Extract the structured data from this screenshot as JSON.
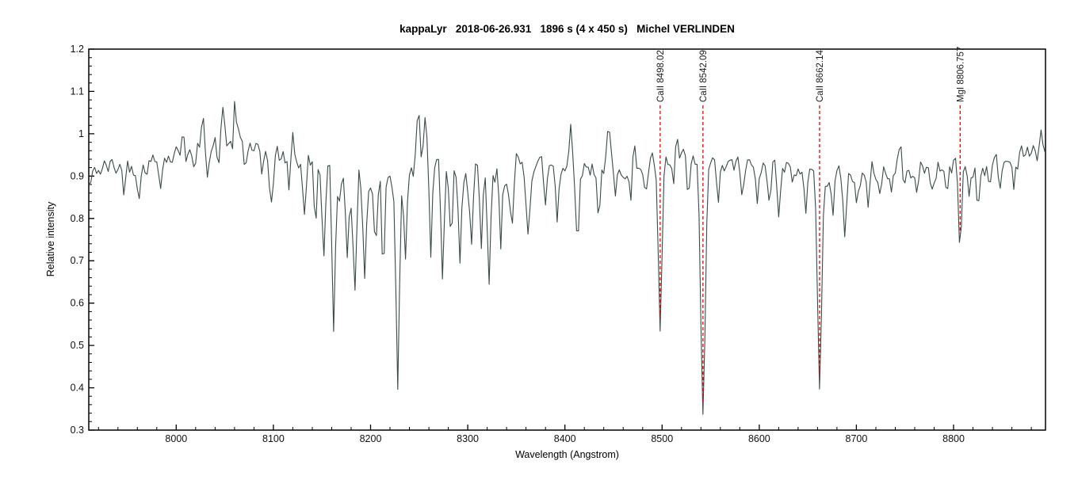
{
  "chart_data": {
    "type": "line",
    "title": "kappaLyr   2018-06-26.931   1896 s (4 x 450 s)   Michel VERLINDEN",
    "xlabel": "Wavelength (Angstrom)",
    "ylabel": "Relative intensity",
    "xlim": [
      7910,
      8894.6
    ],
    "ylim": [
      0.3,
      1.2
    ],
    "grid": false,
    "legend": "none",
    "background_color": "#ffffff",
    "axis_color": "#000000",
    "line_color": "#3a4b4a",
    "marker_color": "#f20000",
    "x_major_ticks": [
      8000,
      8100,
      8200,
      8300,
      8400,
      8500,
      8600,
      8700,
      8800
    ],
    "x_tick_labels": [
      "8000",
      "8100",
      "8200",
      "8300",
      "8400",
      "8500",
      "8600",
      "8700",
      "8800"
    ],
    "x_minor_step": 20,
    "y_major_ticks": [
      0.3,
      0.4,
      0.5,
      0.6,
      0.7,
      0.8,
      0.9,
      1,
      1.1,
      1.2
    ],
    "y_tick_labels": [
      "0.3",
      "0.4",
      "0.5",
      "0.6",
      "0.7",
      "0.8",
      "0.9",
      "1",
      "1.1",
      "1.2"
    ],
    "y_minor_step": 0.02,
    "spectral_lines": [
      {
        "label": "CaII 8498.02",
        "wavelength": 8498.02,
        "core_intensity": 0.53,
        "dash_bottom_intensity": 0.565
      },
      {
        "label": "CaII 8542.09",
        "wavelength": 8542.09,
        "core_intensity": 0.34,
        "dash_bottom_intensity": 0.365
      },
      {
        "label": "CaII 8662.14",
        "wavelength": 8662.14,
        "core_intensity": 0.4,
        "dash_bottom_intensity": 0.425
      },
      {
        "label": "MgI 8806.757",
        "wavelength": 8806.757,
        "core_intensity": 0.73,
        "dash_bottom_intensity": 0.765
      }
    ],
    "continuum": [
      [
        7910,
        0.875
      ],
      [
        7918,
        0.915
      ],
      [
        7930,
        0.92
      ],
      [
        7950,
        0.925
      ],
      [
        7970,
        0.93
      ],
      [
        7990,
        0.945
      ],
      [
        8010,
        0.955
      ],
      [
        8030,
        0.965
      ],
      [
        8050,
        0.98
      ],
      [
        8065,
        0.985
      ],
      [
        8080,
        0.965
      ],
      [
        8095,
        0.95
      ],
      [
        8110,
        0.945
      ],
      [
        8125,
        0.94
      ],
      [
        8140,
        0.925
      ],
      [
        8155,
        0.895
      ],
      [
        8170,
        0.885
      ],
      [
        8185,
        0.88
      ],
      [
        8200,
        0.885
      ],
      [
        8215,
        0.89
      ],
      [
        8228,
        0.89
      ],
      [
        8242,
        0.95
      ],
      [
        8258,
        0.93
      ],
      [
        8272,
        0.9
      ],
      [
        8288,
        0.89
      ],
      [
        8305,
        0.885
      ],
      [
        8320,
        0.88
      ],
      [
        8335,
        0.89
      ],
      [
        8350,
        0.915
      ],
      [
        8370,
        0.925
      ],
      [
        8395,
        0.93
      ],
      [
        8420,
        0.92
      ],
      [
        8445,
        0.925
      ],
      [
        8470,
        0.93
      ],
      [
        8495,
        0.925
      ],
      [
        8520,
        0.93
      ],
      [
        8545,
        0.92
      ],
      [
        8570,
        0.92
      ],
      [
        8600,
        0.925
      ],
      [
        8630,
        0.92
      ],
      [
        8660,
        0.915
      ],
      [
        8690,
        0.9
      ],
      [
        8715,
        0.91
      ],
      [
        8740,
        0.92
      ],
      [
        8770,
        0.92
      ],
      [
        8800,
        0.92
      ],
      [
        8830,
        0.925
      ],
      [
        8855,
        0.935
      ],
      [
        8875,
        0.945
      ],
      [
        8894.6,
        0.96
      ]
    ],
    "absorption_features": [
      [
        7946,
        0.05,
        2
      ],
      [
        7962,
        0.055,
        2.5
      ],
      [
        7984,
        0.04,
        2
      ],
      [
        8018,
        0.06,
        2
      ],
      [
        8032,
        0.04,
        2
      ],
      [
        8044,
        0.05,
        2
      ],
      [
        8058,
        0.04,
        2
      ],
      [
        8071,
        0.06,
        2
      ],
      [
        8088,
        0.08,
        2
      ],
      [
        8098,
        0.11,
        2.5
      ],
      [
        8116,
        0.07,
        2
      ],
      [
        8132,
        0.1,
        2.5
      ],
      [
        8143,
        0.12,
        2
      ],
      [
        8152,
        0.19,
        2
      ],
      [
        8162,
        0.36,
        2.2
      ],
      [
        8176,
        0.16,
        2
      ],
      [
        8184,
        0.26,
        2.2
      ],
      [
        8194,
        0.22,
        2
      ],
      [
        8205,
        0.16,
        2
      ],
      [
        8213,
        0.22,
        2
      ],
      [
        8228,
        0.49,
        2.4
      ],
      [
        8236,
        0.22,
        2
      ],
      [
        8262,
        0.2,
        2
      ],
      [
        8274,
        0.23,
        2.2
      ],
      [
        8283,
        0.13,
        2
      ],
      [
        8292,
        0.22,
        2.2
      ],
      [
        8304,
        0.15,
        2
      ],
      [
        8314,
        0.18,
        2
      ],
      [
        8322,
        0.235,
        2.2
      ],
      [
        8334,
        0.16,
        2
      ],
      [
        8346,
        0.11,
        2
      ],
      [
        8362,
        0.14,
        2.5
      ],
      [
        8380,
        0.1,
        2
      ],
      [
        8392,
        0.13,
        2
      ],
      [
        8413,
        0.15,
        2.5
      ],
      [
        8435,
        0.12,
        2
      ],
      [
        8452,
        0.09,
        2
      ],
      [
        8468,
        0.11,
        2
      ],
      [
        8483,
        0.08,
        2
      ],
      [
        8498.02,
        0.4,
        2.6
      ],
      [
        8512,
        0.06,
        2
      ],
      [
        8527,
        0.08,
        2
      ],
      [
        8542.09,
        0.585,
        3.2
      ],
      [
        8558,
        0.07,
        2
      ],
      [
        8582,
        0.07,
        2
      ],
      [
        8598,
        0.1,
        2
      ],
      [
        8611,
        0.08,
        2
      ],
      [
        8620,
        0.095,
        2
      ],
      [
        8634,
        0.06,
        2
      ],
      [
        8648,
        0.09,
        2
      ],
      [
        8662.14,
        0.52,
        3.0
      ],
      [
        8676,
        0.08,
        2
      ],
      [
        8688,
        0.13,
        2.5
      ],
      [
        8700,
        0.07,
        2
      ],
      [
        8712,
        0.1,
        2
      ],
      [
        8724,
        0.06,
        2
      ],
      [
        8736,
        0.06,
        2
      ],
      [
        8750,
        0.05,
        2
      ],
      [
        8762,
        0.07,
        2
      ],
      [
        8778,
        0.06,
        2
      ],
      [
        8793,
        0.065,
        2
      ],
      [
        8806.757,
        0.19,
        2.2
      ],
      [
        8816,
        0.06,
        2
      ],
      [
        8825,
        0.1,
        2
      ],
      [
        8838,
        0.05,
        2
      ],
      [
        8848,
        0.06,
        2
      ],
      [
        8862,
        0.05,
        2
      ]
    ],
    "emission_spikes": [
      [
        8007,
        0.07,
        2
      ],
      [
        8028,
        0.08,
        2
      ],
      [
        8048,
        0.085,
        2
      ],
      [
        8060,
        0.09,
        2
      ],
      [
        8120,
        0.05,
        2
      ],
      [
        8249,
        0.145,
        2.2
      ],
      [
        8256,
        0.07,
        2
      ],
      [
        8298,
        0.06,
        2
      ],
      [
        8406,
        0.09,
        2
      ],
      [
        8445,
        0.08,
        2
      ],
      [
        8470,
        0.05,
        2
      ],
      [
        8515,
        0.065,
        2
      ],
      [
        8605,
        0.04,
        2
      ],
      [
        8745,
        0.045,
        2
      ],
      [
        8870,
        0.045,
        2
      ],
      [
        8890,
        0.055,
        2
      ]
    ],
    "noise": {
      "amplitude": 0.024,
      "band": [
        8128,
        8352,
        1.6
      ],
      "seed": 42,
      "step": 2
    }
  }
}
